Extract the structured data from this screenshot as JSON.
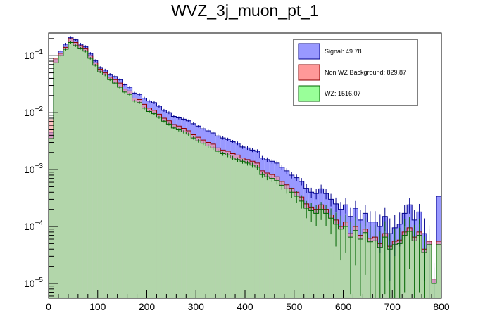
{
  "chart_data": {
    "type": "histogram",
    "title": "WVZ_3j_muon_pt_1",
    "xlabel": "",
    "ylabel": "",
    "xlim": [
      0,
      800
    ],
    "ylim": [
      5.5e-06,
      0.25
    ],
    "yscale": "log",
    "grid": false,
    "legend_position": "top-right",
    "bin_width": 10,
    "x_ticks": [
      0,
      100,
      200,
      300,
      400,
      500,
      600,
      700,
      800
    ],
    "x_tick_labels": [
      "0",
      "100",
      "200",
      "300",
      "400",
      "500",
      "600",
      "700",
      "800"
    ],
    "y_ticks": [
      1e-05,
      0.0001,
      0.001,
      0.01,
      0.1
    ],
    "y_tick_base": [
      "10",
      "10",
      "10",
      "10",
      "10"
    ],
    "y_tick_exp": [
      "−5",
      "−4",
      "−3",
      "−2",
      "−1"
    ],
    "series": [
      {
        "name": "Signal: 49.78",
        "legend_label": "Signal: 49.78",
        "fill": "#9999ff",
        "line": "#00008b",
        "has_error_bars": true,
        "values": [
          0.0045,
          0.085,
          0.12,
          0.16,
          0.21,
          0.19,
          0.16,
          0.145,
          0.11,
          0.082,
          0.062,
          0.056,
          0.047,
          0.043,
          0.038,
          0.031,
          0.028,
          0.022,
          0.021,
          0.018,
          0.016,
          0.015,
          0.013,
          0.011,
          0.01,
          0.0086,
          0.0081,
          0.0077,
          0.0072,
          0.0064,
          0.0058,
          0.0052,
          0.0048,
          0.0044,
          0.0039,
          0.0036,
          0.0034,
          0.0031,
          0.0029,
          0.0025,
          0.0024,
          0.0022,
          0.0021,
          0.0016,
          0.0015,
          0.0014,
          0.0013,
          0.0011,
          0.00095,
          0.0008,
          0.00072,
          0.00062,
          0.00047,
          0.0004,
          0.00038,
          0.00046,
          0.00038,
          0.0003,
          0.00025,
          0.0002,
          0.00024,
          0.00015,
          0.00021,
          0.00013,
          0.00017,
          0.00012,
          0.00012,
          0.0001,
          0.00015,
          7.5e-05,
          9.5e-05,
          0.00011,
          0.00017,
          0.00024,
          0.00013,
          0.00018,
          7.5e-05,
          5.5e-05,
          1.2e-05,
          0.00034
        ]
      },
      {
        "name": "Non WZ Background: 829.87",
        "legend_label": "Non WZ Background: 829.87",
        "fill": "#ff9999",
        "line": "#8b0000",
        "has_error_bars": false,
        "values": [
          0.0075,
          0.09,
          0.11,
          0.14,
          0.2,
          0.17,
          0.15,
          0.135,
          0.1,
          0.075,
          0.058,
          0.05,
          0.042,
          0.038,
          0.033,
          0.026,
          0.024,
          0.018,
          0.017,
          0.014,
          0.012,
          0.011,
          0.0094,
          0.008,
          0.0072,
          0.0062,
          0.0058,
          0.0053,
          0.0048,
          0.0041,
          0.0037,
          0.0033,
          0.003,
          0.0028,
          0.0024,
          0.0022,
          0.0021,
          0.0019,
          0.0018,
          0.0016,
          0.0015,
          0.0014,
          0.0013,
          0.00095,
          0.00087,
          0.00082,
          0.00075,
          0.00062,
          0.00054,
          0.00047,
          0.0004,
          0.00033,
          0.00025,
          0.00022,
          0.0002,
          0.00024,
          0.0002,
          0.00016,
          0.00013,
          0.0001,
          0.00012,
          7.5e-05,
          0.0001,
          7e-05,
          9e-05,
          6.2e-05,
          6.5e-05,
          5e-05,
          7.5e-05,
          4.5e-05,
          5.5e-05,
          5.8e-05,
          8e-05,
          9.5e-05,
          6.5e-05,
          8e-05,
          4e-05,
          5.5e-05,
          1.2e-05,
          5.5e-05
        ]
      },
      {
        "name": "WZ: 1516.07",
        "legend_label": "WZ: 1516.07",
        "fill": "#99ff99",
        "line": "#006400",
        "has_error_bars": true,
        "values": [
          0.0035,
          0.075,
          0.1,
          0.13,
          0.17,
          0.15,
          0.135,
          0.12,
          0.09,
          0.068,
          0.052,
          0.046,
          0.038,
          0.033,
          0.028,
          0.023,
          0.021,
          0.016,
          0.015,
          0.012,
          0.0105,
          0.0096,
          0.0083,
          0.0071,
          0.0063,
          0.0054,
          0.005,
          0.0046,
          0.0042,
          0.0036,
          0.0032,
          0.0029,
          0.0026,
          0.0024,
          0.0021,
          0.0019,
          0.0018,
          0.0016,
          0.0015,
          0.0014,
          0.0013,
          0.0012,
          0.0011,
          0.00082,
          0.00075,
          0.0007,
          0.00064,
          0.00053,
          0.00046,
          0.0004,
          0.00034,
          0.00028,
          0.00021,
          0.00019,
          0.00017,
          0.0002,
          0.00017,
          0.00014,
          0.00011,
          9e-05,
          0.0001,
          6.5e-05,
          8.5e-05,
          6e-05,
          7.8e-05,
          5.4e-05,
          5.6e-05,
          4.3e-05,
          6.5e-05,
          4e-05,
          4.8e-05,
          5e-05,
          7e-05,
          8.2e-05,
          5.6e-05,
          7e-05,
          3.5e-05,
          4.8e-05,
          1e-05,
          4.8e-05
        ]
      }
    ]
  }
}
